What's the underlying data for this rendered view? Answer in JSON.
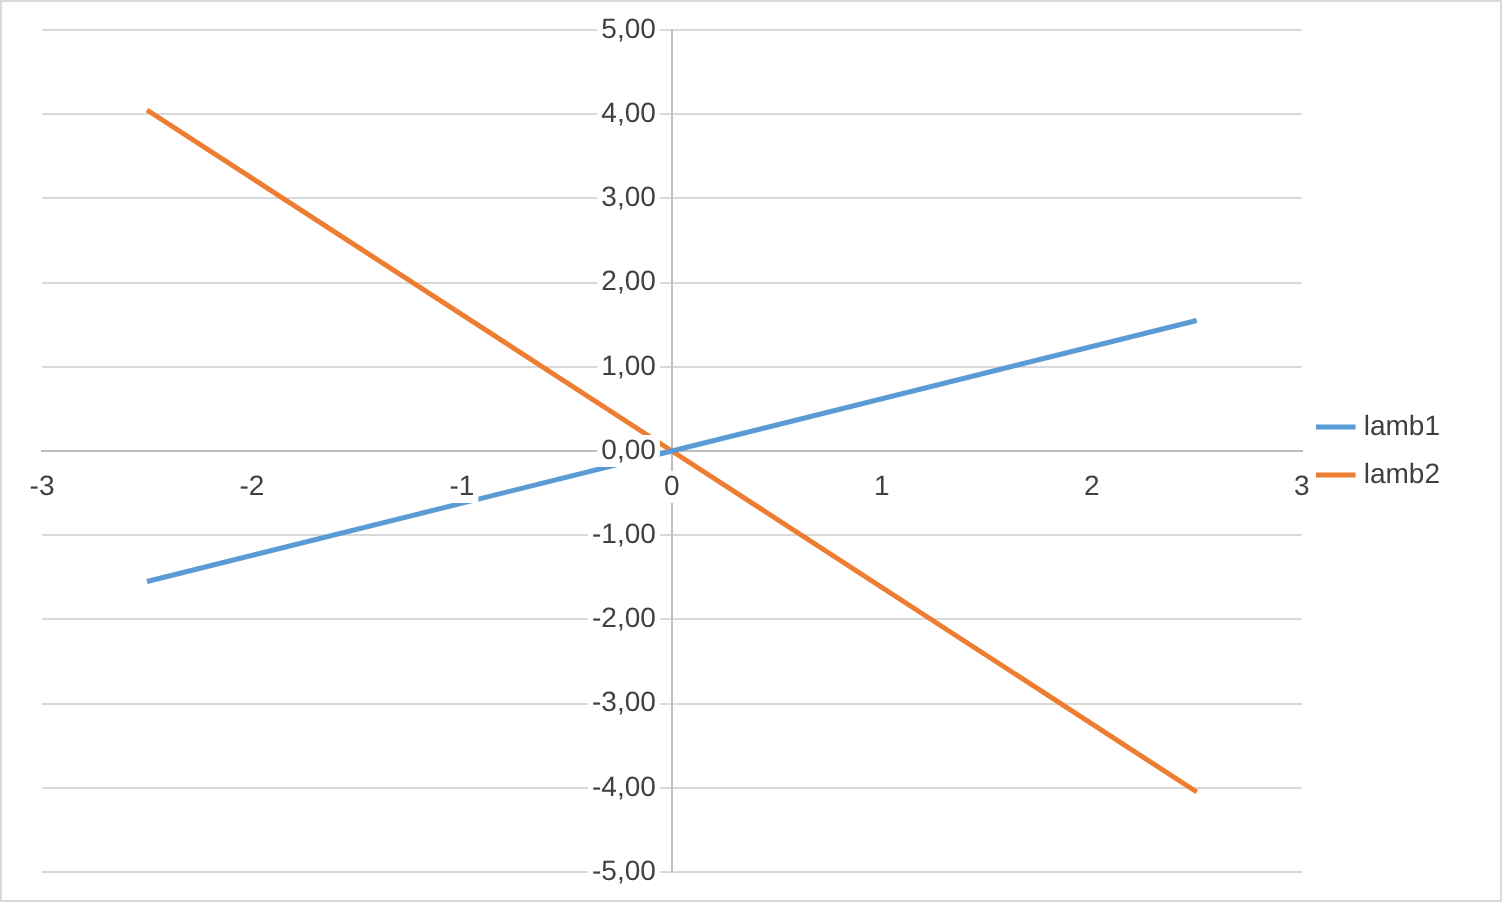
{
  "chart_data": {
    "type": "line",
    "x": [
      -2.5,
      0,
      2.5
    ],
    "series": [
      {
        "name": "lamb1",
        "color": "#5b9bd5",
        "values": [
          -1.55,
          0,
          1.55
        ]
      },
      {
        "name": "lamb2",
        "color": "#ed7d31",
        "values": [
          4.05,
          0,
          -4.05
        ]
      }
    ],
    "xlim": [
      -3,
      3
    ],
    "xticks": [
      -3,
      -2,
      -1,
      0,
      1,
      2,
      3
    ],
    "ylim": [
      -5,
      5
    ],
    "yticks": [
      {
        "value": -5,
        "label": "-5,00"
      },
      {
        "value": -4,
        "label": "-4,00"
      },
      {
        "value": -3,
        "label": "-3,00"
      },
      {
        "value": -2,
        "label": "-2,00"
      },
      {
        "value": -1,
        "label": "-1,00"
      },
      {
        "value": 0,
        "label": "0,00"
      },
      {
        "value": 1,
        "label": "1,00"
      },
      {
        "value": 2,
        "label": "2,00"
      },
      {
        "value": 3,
        "label": "3,00"
      },
      {
        "value": 4,
        "label": "4,00"
      },
      {
        "value": 5,
        "label": "5,00"
      }
    ],
    "grid": "y",
    "legend": "right",
    "marker": "none",
    "line_style": "solid"
  }
}
